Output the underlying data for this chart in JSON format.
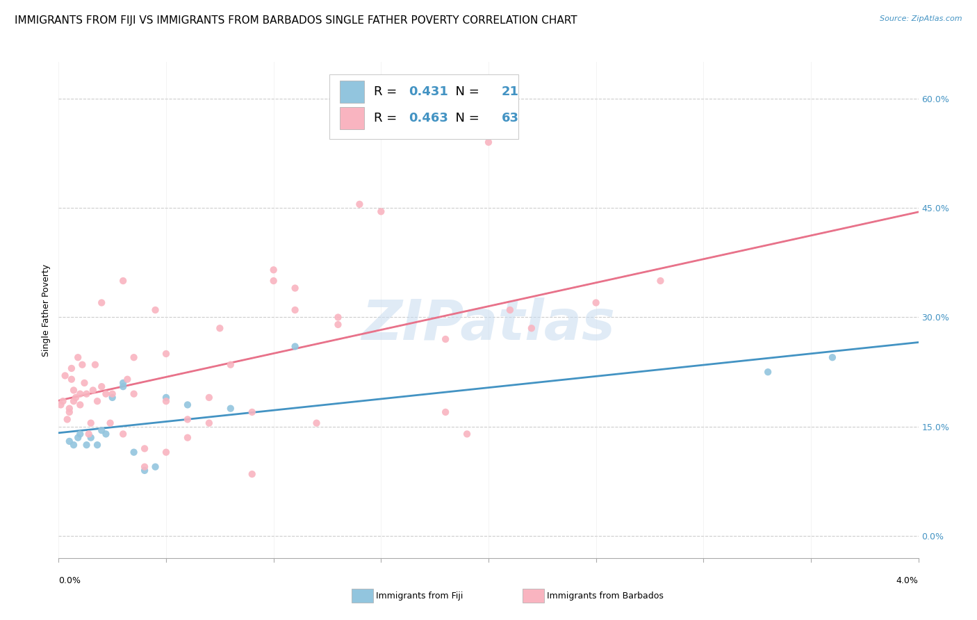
{
  "title": "IMMIGRANTS FROM FIJI VS IMMIGRANTS FROM BARBADOS SINGLE FATHER POVERTY CORRELATION CHART",
  "source": "Source: ZipAtlas.com",
  "ylabel": "Single Father Poverty",
  "fiji_color": "#92C5DE",
  "barbados_color": "#F9B4C0",
  "fiji_line_color": "#4393C3",
  "barbados_line_color": "#E8728A",
  "barbados_dash_color": "#F0AABB",
  "fiji_R": 0.431,
  "fiji_N": 21,
  "barbados_R": 0.463,
  "barbados_N": 63,
  "watermark": "ZIPatlas",
  "fiji_scatter_x": [
    0.0005,
    0.0007,
    0.0009,
    0.001,
    0.0013,
    0.0015,
    0.0018,
    0.002,
    0.0022,
    0.0025,
    0.003,
    0.003,
    0.0035,
    0.004,
    0.0045,
    0.005,
    0.006,
    0.008,
    0.011,
    0.033,
    0.036
  ],
  "fiji_scatter_y": [
    0.13,
    0.125,
    0.135,
    0.14,
    0.125,
    0.135,
    0.125,
    0.145,
    0.14,
    0.19,
    0.205,
    0.21,
    0.115,
    0.09,
    0.095,
    0.19,
    0.18,
    0.175,
    0.26,
    0.225,
    0.245
  ],
  "barbados_scatter_x": [
    0.0001,
    0.0002,
    0.0003,
    0.0004,
    0.0005,
    0.0005,
    0.0006,
    0.0006,
    0.0007,
    0.0007,
    0.0008,
    0.0009,
    0.001,
    0.001,
    0.0011,
    0.0012,
    0.0013,
    0.0014,
    0.0015,
    0.0016,
    0.0017,
    0.0018,
    0.002,
    0.002,
    0.0022,
    0.0024,
    0.0025,
    0.003,
    0.003,
    0.0032,
    0.0035,
    0.0035,
    0.004,
    0.004,
    0.0045,
    0.005,
    0.005,
    0.005,
    0.006,
    0.006,
    0.007,
    0.007,
    0.0075,
    0.008,
    0.009,
    0.009,
    0.01,
    0.01,
    0.011,
    0.011,
    0.012,
    0.013,
    0.013,
    0.014,
    0.015,
    0.018,
    0.018,
    0.019,
    0.02,
    0.021,
    0.022,
    0.025,
    0.028
  ],
  "barbados_scatter_y": [
    0.18,
    0.185,
    0.22,
    0.16,
    0.17,
    0.175,
    0.215,
    0.23,
    0.185,
    0.2,
    0.19,
    0.245,
    0.18,
    0.195,
    0.235,
    0.21,
    0.195,
    0.14,
    0.155,
    0.2,
    0.235,
    0.185,
    0.32,
    0.205,
    0.195,
    0.155,
    0.195,
    0.35,
    0.14,
    0.215,
    0.245,
    0.195,
    0.12,
    0.095,
    0.31,
    0.115,
    0.185,
    0.25,
    0.135,
    0.16,
    0.155,
    0.19,
    0.285,
    0.235,
    0.17,
    0.085,
    0.365,
    0.35,
    0.31,
    0.34,
    0.155,
    0.3,
    0.29,
    0.455,
    0.445,
    0.17,
    0.27,
    0.14,
    0.54,
    0.31,
    0.285,
    0.32,
    0.35
  ],
  "xlim": [
    0.0,
    0.04
  ],
  "ylim": [
    -0.03,
    0.65
  ],
  "right_yticks": [
    0.0,
    0.15,
    0.3,
    0.45,
    0.6
  ],
  "right_yticklabels": [
    "0.0%",
    "15.0%",
    "30.0%",
    "45.0%",
    "60.0%"
  ],
  "title_fontsize": 11,
  "axis_label_fontsize": 9,
  "tick_fontsize": 9,
  "legend_fontsize": 13
}
